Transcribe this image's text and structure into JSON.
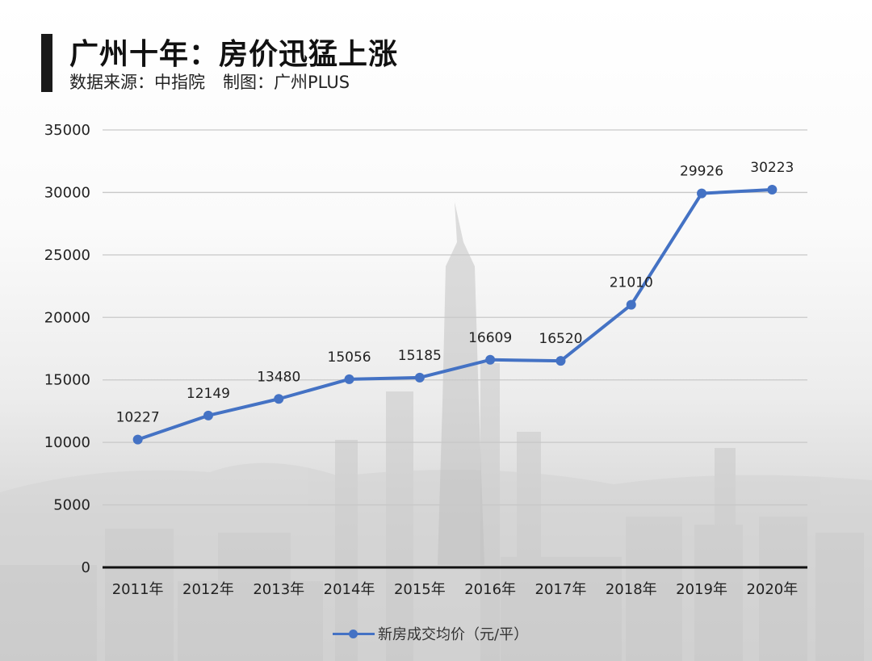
{
  "header": {
    "title": "广州十年：房价迅猛上涨",
    "source_label": "数据来源：中指院",
    "author_label": "制图：广州PLUS"
  },
  "legend": {
    "label": "新房成交均价（元/平）",
    "color": "#4472C4"
  },
  "chart_data": {
    "type": "line",
    "title": "广州十年：房价迅猛上涨",
    "subtitle": "数据来源：中指院 制图：广州PLUS",
    "categories": [
      "2011年",
      "2012年",
      "2013年",
      "2014年",
      "2015年",
      "2016年",
      "2017年",
      "2018年",
      "2019年",
      "2020年"
    ],
    "series": [
      {
        "name": "新房成交均价（元/平）",
        "color": "#4472C4",
        "values": [
          10227,
          12149,
          13480,
          15056,
          15185,
          16609,
          16520,
          21010,
          29926,
          30223
        ]
      }
    ],
    "xlabel": "",
    "ylabel": "",
    "ylim": [
      0,
      35000
    ],
    "yticks": [
      0,
      5000,
      10000,
      15000,
      20000,
      25000,
      30000,
      35000
    ],
    "grid": true,
    "legend_position": "bottom",
    "data_labels": true
  }
}
